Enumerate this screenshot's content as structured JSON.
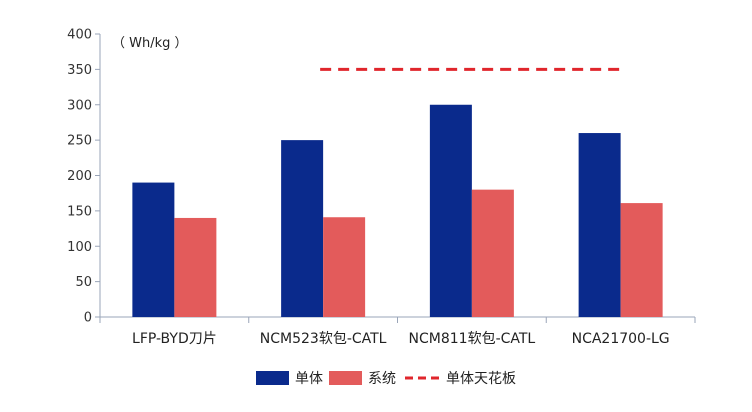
{
  "chart_data": {
    "type": "bar",
    "unit_label": "（ Wh/kg ）",
    "categories": [
      "LFP-BYD刀片",
      "NCM523软包-CATL",
      "NCM811软包-CATL",
      "NCA21700-LG"
    ],
    "series": [
      {
        "name": "单体",
        "values": [
          190,
          250,
          300,
          260
        ],
        "color": "#0a2a8c"
      },
      {
        "name": "系统",
        "values": [
          140,
          141,
          180,
          161
        ],
        "color": "#e35b5b"
      }
    ],
    "reference_line": {
      "name": "单体天花板",
      "value": 350,
      "color": "#e0262c",
      "style": "dashed",
      "from_category": 1,
      "to_category": 3
    },
    "ylim": [
      0,
      400
    ],
    "yticks": [
      0,
      50,
      100,
      150,
      200,
      250,
      300,
      350,
      400
    ],
    "grid": false,
    "legend_position": "bottom-center"
  }
}
